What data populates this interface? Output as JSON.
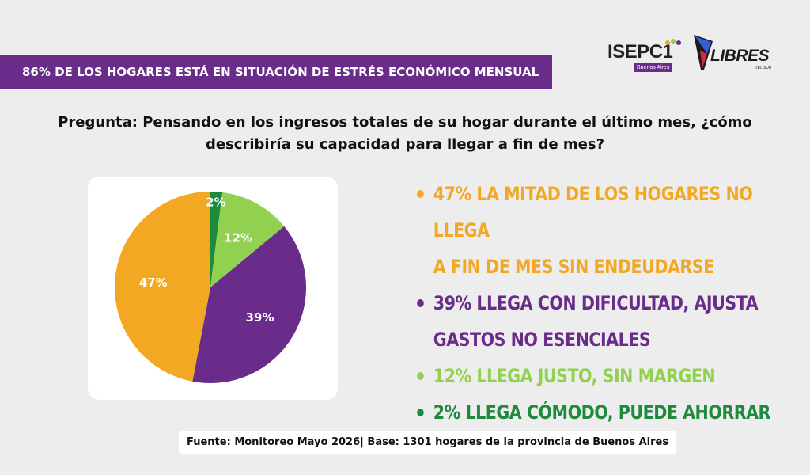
{
  "header": {
    "title": "86% DE LOS HOGARES ESTÁ EN SITUACIÓN DE ESTRÉS ECONÓMICO MENSUAL",
    "banner_color": "#6a2c8a"
  },
  "logos": {
    "isepci": {
      "name": "ISEPC1",
      "sub": "Buenos Aires"
    },
    "libres": {
      "name": "LIBRES",
      "sub": "DEL SUR"
    }
  },
  "question": "Pregunta: Pensando en los ingresos totales de su hogar durante el último mes, ¿cómo describiría su capacidad para llegar a fin de mes?",
  "chart_data": {
    "type": "pie",
    "start_angle_deg": 0,
    "direction": "clockwise",
    "slices": [
      {
        "label": "2%",
        "value": 2,
        "color": "#1e8a3c",
        "label_color": "#ffffff"
      },
      {
        "label": "12%",
        "value": 12,
        "color": "#92d050",
        "label_color": "#ffffff"
      },
      {
        "label": "39%",
        "value": 39,
        "color": "#6a2c8a",
        "label_color": "#ffffff"
      },
      {
        "label": "47%",
        "value": 47,
        "color": "#f2a823",
        "label_color": "#ffffff"
      }
    ]
  },
  "legend": {
    "items": [
      {
        "lines": [
          "47% LA MITAD DE LOS HOGARES NO LLEGA",
          "A FIN DE MES SIN ENDEUDARSE"
        ],
        "color": "#f2a823"
      },
      {
        "lines": [
          "39% LLEGA CON DIFICULTAD, AJUSTA",
          "GASTOS NO ESENCIALES"
        ],
        "color": "#6a2c8a"
      },
      {
        "lines": [
          "12% LLEGA JUSTO, SIN MARGEN"
        ],
        "color": "#92d050"
      },
      {
        "lines": [
          "2% LLEGA CÓMODO, PUEDE AHORRAR"
        ],
        "color": "#1e8a3c"
      }
    ]
  },
  "source": "Fuente: Monitoreo Mayo 2026| Base: 1301 hogares de la provincia de Buenos Aires"
}
